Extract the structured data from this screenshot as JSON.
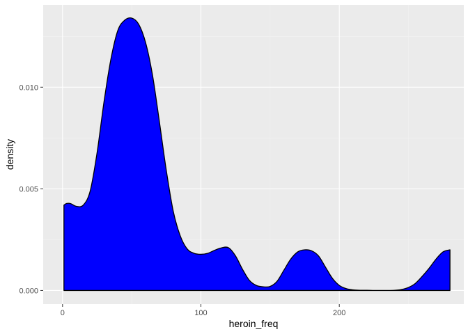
{
  "chart_data": {
    "type": "area",
    "title": "",
    "xlabel": "heroin_freq",
    "ylabel": "density",
    "xlim": [
      -14,
      290
    ],
    "ylim": [
      -0.00067,
      0.01405
    ],
    "x_ticks": [
      0,
      100,
      200
    ],
    "x_tick_labels": [
      "0",
      "100",
      "200"
    ],
    "y_ticks": [
      0.0,
      0.005,
      0.01
    ],
    "y_tick_labels": [
      "0.000",
      "0.005",
      "0.010"
    ],
    "grid": true,
    "series": [
      {
        "fill": "#0000ff",
        "stroke": "#000000",
        "x": [
          1,
          3,
          6,
          10,
          15,
          20,
          25,
          30,
          35,
          40,
          45,
          50,
          55,
          60,
          65,
          70,
          75,
          80,
          85,
          90,
          95,
          100,
          105,
          110,
          115,
          120,
          125,
          130,
          135,
          140,
          145,
          150,
          155,
          160,
          165,
          170,
          175,
          180,
          185,
          190,
          195,
          200,
          205,
          210,
          215,
          220,
          225,
          230,
          235,
          240,
          245,
          250,
          255,
          260,
          265,
          270,
          275,
          280
        ],
        "y": [
          0.0042,
          0.00428,
          0.00427,
          0.00414,
          0.0042,
          0.0049,
          0.0068,
          0.0093,
          0.0114,
          0.0128,
          0.0133,
          0.0134,
          0.0131,
          0.0122,
          0.0106,
          0.0083,
          0.0059,
          0.0039,
          0.0027,
          0.00205,
          0.00183,
          0.00178,
          0.00183,
          0.00198,
          0.0021,
          0.0021,
          0.0017,
          0.00105,
          0.0005,
          0.00025,
          0.00018,
          0.0002,
          0.00045,
          0.001,
          0.00155,
          0.0019,
          0.002,
          0.00195,
          0.0017,
          0.00115,
          0.0006,
          0.00025,
          9e-05,
          3e-05,
          1e-05,
          1e-05,
          0.0,
          0.0,
          0.0,
          1e-05,
          5e-05,
          0.00015,
          0.00035,
          0.0007,
          0.0011,
          0.00155,
          0.0019,
          0.002
        ]
      }
    ]
  }
}
